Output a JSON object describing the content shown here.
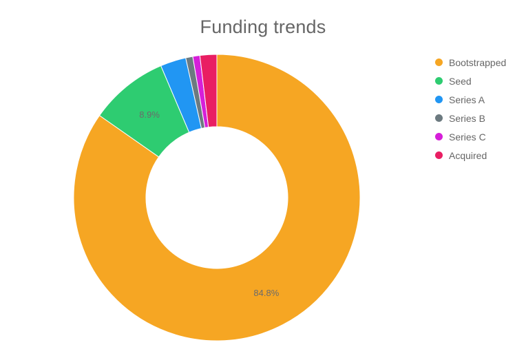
{
  "chart_data": {
    "type": "pie",
    "title": "Funding trends",
    "categories": [
      "Bootstrapped",
      "Seed",
      "Series A",
      "Series B",
      "Series C",
      "Acquired"
    ],
    "values": [
      84.8,
      8.9,
      2.9,
      0.8,
      0.8,
      1.9
    ],
    "data_labels": [
      "84.8%",
      "8.9%",
      "",
      "",
      "",
      ""
    ],
    "colors": [
      "#F6A623",
      "#2ECC71",
      "#2196F3",
      "#6C7A80",
      "#D61FD9",
      "#E91E63"
    ],
    "donut": true,
    "legend": "right"
  }
}
